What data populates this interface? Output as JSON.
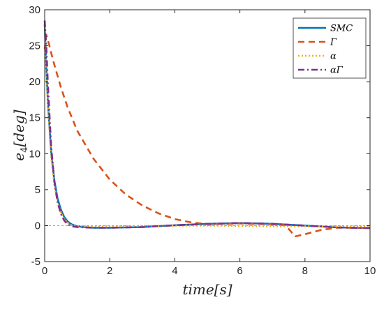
{
  "chart_data": {
    "type": "line",
    "xlabel": "time[s]",
    "ylabel": "e4[deg]",
    "xlim": [
      0,
      10
    ],
    "ylim": [
      -5,
      30
    ],
    "xticks": [
      "0",
      "2",
      "4",
      "6",
      "8",
      "10"
    ],
    "yticks": [
      "-5",
      "0",
      "5",
      "10",
      "15",
      "20",
      "25",
      "30"
    ],
    "grid": false,
    "legend_position": "top-right",
    "reference_line": 0,
    "series": [
      {
        "name": "SMC",
        "color": "#0072BD",
        "style": "solid",
        "x": [
          0,
          0.05,
          0.1,
          0.2,
          0.3,
          0.4,
          0.5,
          0.6,
          0.7,
          0.8,
          0.9,
          1.0,
          1.2,
          1.5,
          2,
          3,
          4,
          5,
          6,
          6.5,
          7,
          8,
          9,
          10
        ],
        "y": [
          28,
          22,
          17,
          10.2,
          6.2,
          3.7,
          2.2,
          1.2,
          0.6,
          0.25,
          0.05,
          -0.1,
          -0.2,
          -0.3,
          -0.3,
          -0.2,
          0.05,
          0.25,
          0.35,
          0.3,
          0.25,
          0.0,
          -0.25,
          -0.35
        ]
      },
      {
        "name": "Γ",
        "color": "#D95319",
        "style": "dashed",
        "x": [
          0,
          0.05,
          0.1,
          0.2,
          0.3,
          0.5,
          0.7,
          1.0,
          1.5,
          2.0,
          2.5,
          3.0,
          3.5,
          4.0,
          4.5,
          5,
          6,
          7,
          7.4,
          7.6,
          7.7,
          8.0,
          8.5,
          9,
          10
        ],
        "y": [
          24.5,
          26.5,
          25.8,
          24.0,
          22.3,
          19.2,
          16.5,
          13.2,
          9.3,
          6.4,
          4.3,
          2.8,
          1.7,
          0.9,
          0.45,
          0.2,
          0.3,
          0.2,
          0.05,
          -1.0,
          -1.5,
          -1.2,
          -0.6,
          -0.3,
          -0.3
        ]
      },
      {
        "name": "α",
        "color": "#EDB120",
        "style": "dotted",
        "x": [
          0,
          0.05,
          0.1,
          0.2,
          0.3,
          0.4,
          0.5,
          0.6,
          0.7,
          0.8,
          0.9,
          1.0,
          1.5,
          2,
          3,
          4,
          5,
          6,
          7,
          8,
          9,
          10
        ],
        "y": [
          28.5,
          22,
          16.5,
          9.5,
          5.5,
          3.2,
          1.8,
          0.9,
          0.4,
          0.1,
          -0.05,
          -0.1,
          -0.1,
          -0.1,
          -0.05,
          0.0,
          0.0,
          -0.05,
          -0.1,
          -0.1,
          -0.1,
          -0.1
        ]
      },
      {
        "name": "αΓ",
        "color": "#7E2F8E",
        "style": "dashdot",
        "x": [
          0,
          0.05,
          0.1,
          0.2,
          0.3,
          0.4,
          0.5,
          0.6,
          0.7,
          0.8,
          0.9,
          1.0,
          1.2,
          1.5,
          2,
          3,
          4,
          5,
          6,
          6.5,
          7,
          8,
          9,
          10
        ],
        "y": [
          28.5,
          25,
          19.5,
          11.0,
          6.0,
          3.2,
          1.6,
          0.7,
          0.2,
          -0.05,
          -0.15,
          -0.2,
          -0.25,
          -0.3,
          -0.3,
          -0.2,
          0.05,
          0.25,
          0.35,
          0.3,
          0.25,
          0.0,
          -0.25,
          -0.35
        ]
      }
    ]
  }
}
